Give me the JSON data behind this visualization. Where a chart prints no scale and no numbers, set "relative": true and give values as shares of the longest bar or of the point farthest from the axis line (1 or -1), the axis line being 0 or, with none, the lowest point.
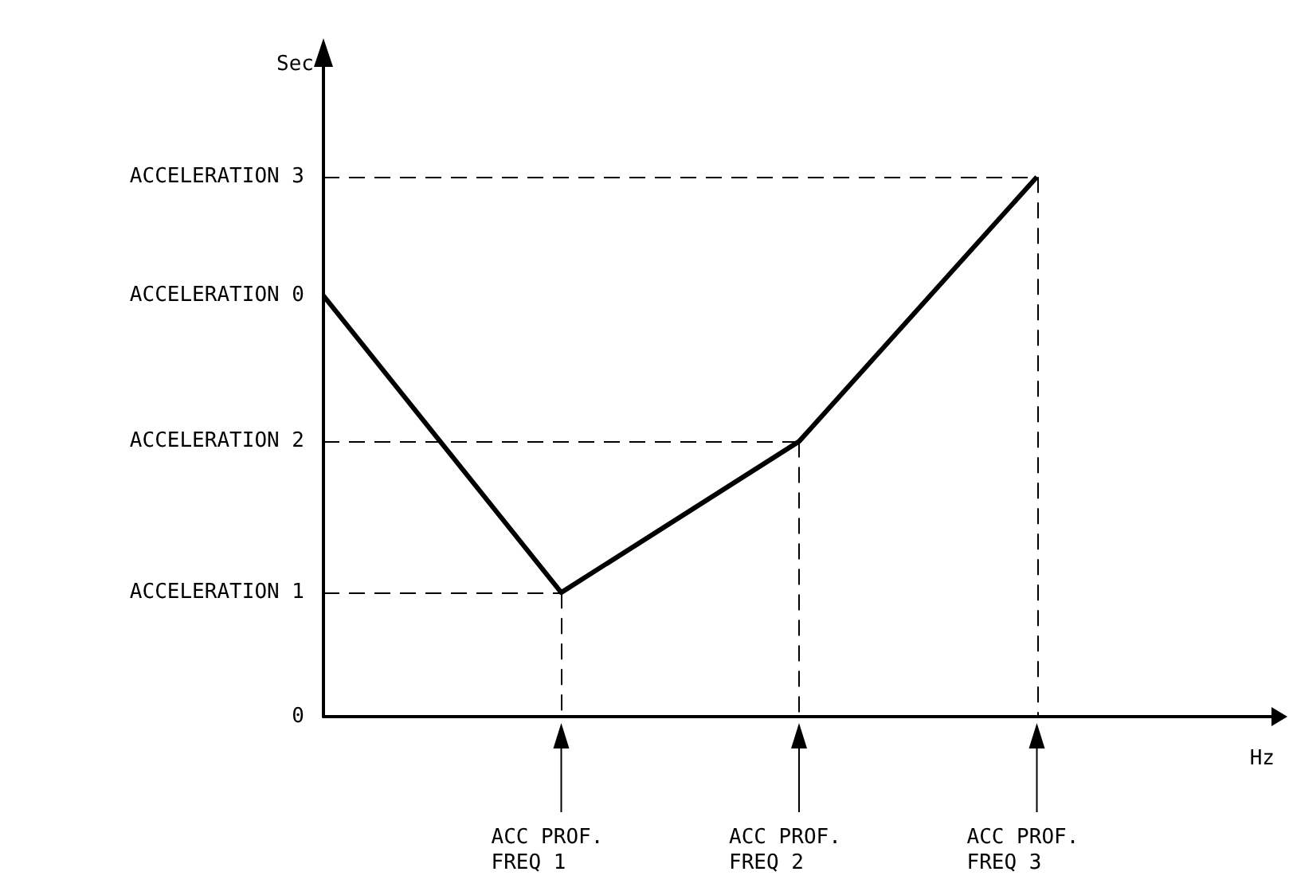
{
  "chart_data": {
    "type": "line",
    "relative": true,
    "xlabel": "Hz",
    "ylabel": "Sec",
    "categories": [
      null,
      "ACC PROF.\nFREQ 1",
      "ACC PROF.\nFREQ 2",
      "ACC PROF.\nFREQ 3",
      null
    ],
    "series": [
      {
        "color": "#000000",
        "values": [
          0.78,
          0.23,
          0.51,
          1,
          null
        ]
      }
    ],
    "annotations": [
      "ACCELERATION 0",
      "0"
    ],
    "ref_lines": [
      {
        "axis": "y",
        "value": 1,
        "label": "ACCELERATION 3",
        "line_style": "dashed",
        "color": "#000000"
      },
      {
        "axis": "y",
        "value": 0.51,
        "label": "ACCELERATION 2",
        "line_style": "dashed",
        "color": "#000000"
      },
      {
        "axis": "y",
        "value": 0.23,
        "label": "ACCELERATION 1",
        "line_style": "dashed",
        "color": "#000000"
      },
      {
        "axis": "x",
        "value": "ACC PROF.\nFREQ 1",
        "line_style": "dashed",
        "color": "#000000"
      },
      {
        "axis": "x",
        "value": "ACC PROF.\nFREQ 2",
        "line_style": "dashed",
        "color": "#000000"
      },
      {
        "axis": "x",
        "value": "ACC PROF.\nFREQ 3",
        "line_style": "dashed",
        "color": "#000000"
      }
    ],
    "marker": "none",
    "line_style": "solid",
    "grid": false
  }
}
